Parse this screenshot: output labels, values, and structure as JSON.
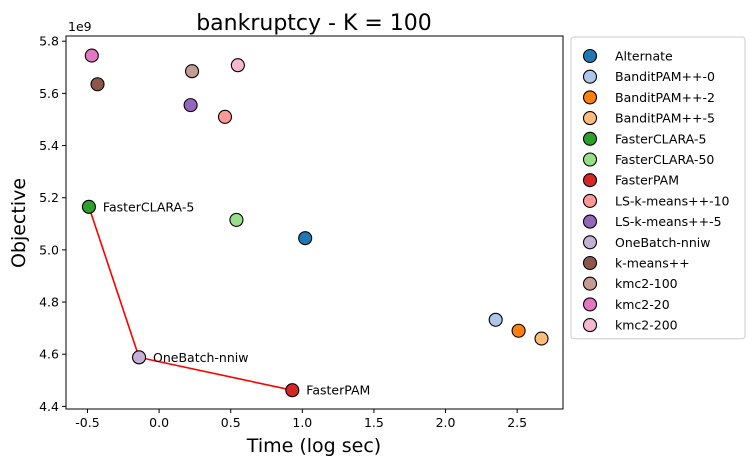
{
  "chart_data": {
    "type": "scatter",
    "title": "bankruptcy - K = 100",
    "xlabel": "Time (log sec)",
    "ylabel": "Objective",
    "y_scale_label": "1e9",
    "xlim": [
      -0.65,
      2.82
    ],
    "ylim": [
      4.39,
      5.82
    ],
    "xticks": [
      -0.5,
      0.0,
      0.5,
      1.0,
      1.5,
      2.0,
      2.5
    ],
    "xtick_labels": [
      "-0.5",
      "0.0",
      "0.5",
      "1.0",
      "1.5",
      "2.0",
      "2.5"
    ],
    "yticks": [
      4.4,
      4.6,
      4.8,
      5.0,
      5.2,
      5.4,
      5.6,
      5.8
    ],
    "ytick_labels": [
      "4.4",
      "4.6",
      "4.8",
      "5.0",
      "5.2",
      "5.4",
      "5.6",
      "5.8"
    ],
    "legend_position": "outside-right",
    "series": [
      {
        "name": "Alternate",
        "color": "#1f77b4",
        "x": 1.02,
        "y": 5.045
      },
      {
        "name": "BanditPAM++-0",
        "color": "#aec7e8",
        "x": 2.35,
        "y": 4.732
      },
      {
        "name": "BanditPAM++-2",
        "color": "#ff7f0e",
        "x": 2.51,
        "y": 4.69
      },
      {
        "name": "BanditPAM++-5",
        "color": "#ffbb78",
        "x": 2.67,
        "y": 4.66
      },
      {
        "name": "FasterCLARA-5",
        "color": "#2ca02c",
        "x": -0.49,
        "y": 5.165
      },
      {
        "name": "FasterCLARA-50",
        "color": "#98df8a",
        "x": 0.54,
        "y": 5.115
      },
      {
        "name": "FasterPAM",
        "color": "#d62728",
        "x": 0.93,
        "y": 4.462
      },
      {
        "name": "LS-k-means++-10",
        "color": "#ff9896",
        "x": 0.46,
        "y": 5.51
      },
      {
        "name": "LS-k-means++-5",
        "color": "#9467bd",
        "x": 0.22,
        "y": 5.555
      },
      {
        "name": "OneBatch-nniw",
        "color": "#c5b0d5",
        "x": -0.14,
        "y": 4.588
      },
      {
        "name": "k-means++",
        "color": "#8c564b",
        "x": -0.43,
        "y": 5.635
      },
      {
        "name": "kmc2-100",
        "color": "#c49c94",
        "x": 0.23,
        "y": 5.685
      },
      {
        "name": "kmc2-20",
        "color": "#e377c2",
        "x": -0.47,
        "y": 5.745
      },
      {
        "name": "kmc2-200",
        "color": "#f7b6d2",
        "x": 0.55,
        "y": 5.708
      }
    ],
    "pareto_front": {
      "color": "#ff0000",
      "points": [
        "FasterCLARA-5",
        "OneBatch-nniw",
        "FasterPAM"
      ]
    },
    "annotations": [
      {
        "text": "FasterCLARA-5",
        "x": -0.49,
        "y": 5.165
      },
      {
        "text": "OneBatch-nniw",
        "x": -0.14,
        "y": 4.588
      },
      {
        "text": "FasterPAM",
        "x": 0.93,
        "y": 4.462
      }
    ]
  }
}
